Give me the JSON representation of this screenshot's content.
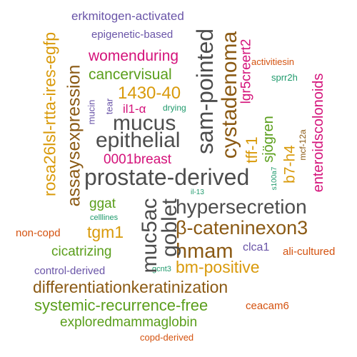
{
  "colors": {
    "gray": "#4d4d4d",
    "brown": "#8b5a14",
    "gold": "#d99a0b",
    "green": "#5a9e1b",
    "magenta": "#d4127a",
    "purple": "#6a55a8",
    "orange": "#d4520f",
    "teal": "#1f9a6c"
  },
  "words": [
    {
      "text": "erkmitogen-activated",
      "color": "purple"
    },
    {
      "text": "epigenetic-based",
      "color": "purple"
    },
    {
      "text": "womenduring",
      "color": "magenta"
    },
    {
      "text": "cancervisual",
      "color": "green"
    },
    {
      "text": "1430-40",
      "color": "gold"
    },
    {
      "text": "il1-α",
      "color": "magenta"
    },
    {
      "text": "drying",
      "color": "teal"
    },
    {
      "text": "mucus",
      "color": "gray"
    },
    {
      "text": "epithelial",
      "color": "gray"
    },
    {
      "text": "0001breast",
      "color": "magenta"
    },
    {
      "text": "prostate-derived",
      "color": "gray"
    },
    {
      "text": "ggat",
      "color": "green"
    },
    {
      "text": "celllines",
      "color": "teal"
    },
    {
      "text": "tgm1",
      "color": "gold"
    },
    {
      "text": "non-copd",
      "color": "orange"
    },
    {
      "text": "hypersecretion",
      "color": "gray"
    },
    {
      "text": "β-cateninexon3",
      "color": "brown"
    },
    {
      "text": "hmam",
      "color": "brown"
    },
    {
      "text": "clca1",
      "color": "purple"
    },
    {
      "text": "ali-cultured",
      "color": "orange"
    },
    {
      "text": "cicatrizing",
      "color": "green"
    },
    {
      "text": "bm-positive",
      "color": "gold"
    },
    {
      "text": "control-derived",
      "color": "purple"
    },
    {
      "text": "gcnt3",
      "color": "teal"
    },
    {
      "text": "differentiationkeratinization",
      "color": "brown"
    },
    {
      "text": "systemic-recurrence-free",
      "color": "green"
    },
    {
      "text": "ceacam6",
      "color": "orange"
    },
    {
      "text": "exploredmammaglobin",
      "color": "green"
    },
    {
      "text": "copd-derived",
      "color": "orange"
    },
    {
      "text": "il-13",
      "color": "teal"
    },
    {
      "text": "activitiesin",
      "color": "orange"
    },
    {
      "text": "sprr2h",
      "color": "teal"
    },
    {
      "text": "rosa26lsl-rtta-ires-egfp",
      "color": "gold"
    },
    {
      "text": "assaysexpression",
      "color": "brown"
    },
    {
      "text": "mucin",
      "color": "purple"
    },
    {
      "text": "tear",
      "color": "purple"
    },
    {
      "text": "sam-pointed",
      "color": "gray"
    },
    {
      "text": "cystadenoma",
      "color": "brown"
    },
    {
      "text": "lgr5creert2",
      "color": "magenta"
    },
    {
      "text": "tff-1",
      "color": "gold"
    },
    {
      "text": "sjögren",
      "color": "green"
    },
    {
      "text": "b7-h4",
      "color": "gold"
    },
    {
      "text": "muc5ac",
      "color": "gray"
    },
    {
      "text": "goblet",
      "color": "gray"
    },
    {
      "text": "enteroidscolonoids",
      "color": "magenta"
    },
    {
      "text": "mcf-12a",
      "color": "brown"
    },
    {
      "text": "s100a7",
      "color": "teal"
    }
  ]
}
